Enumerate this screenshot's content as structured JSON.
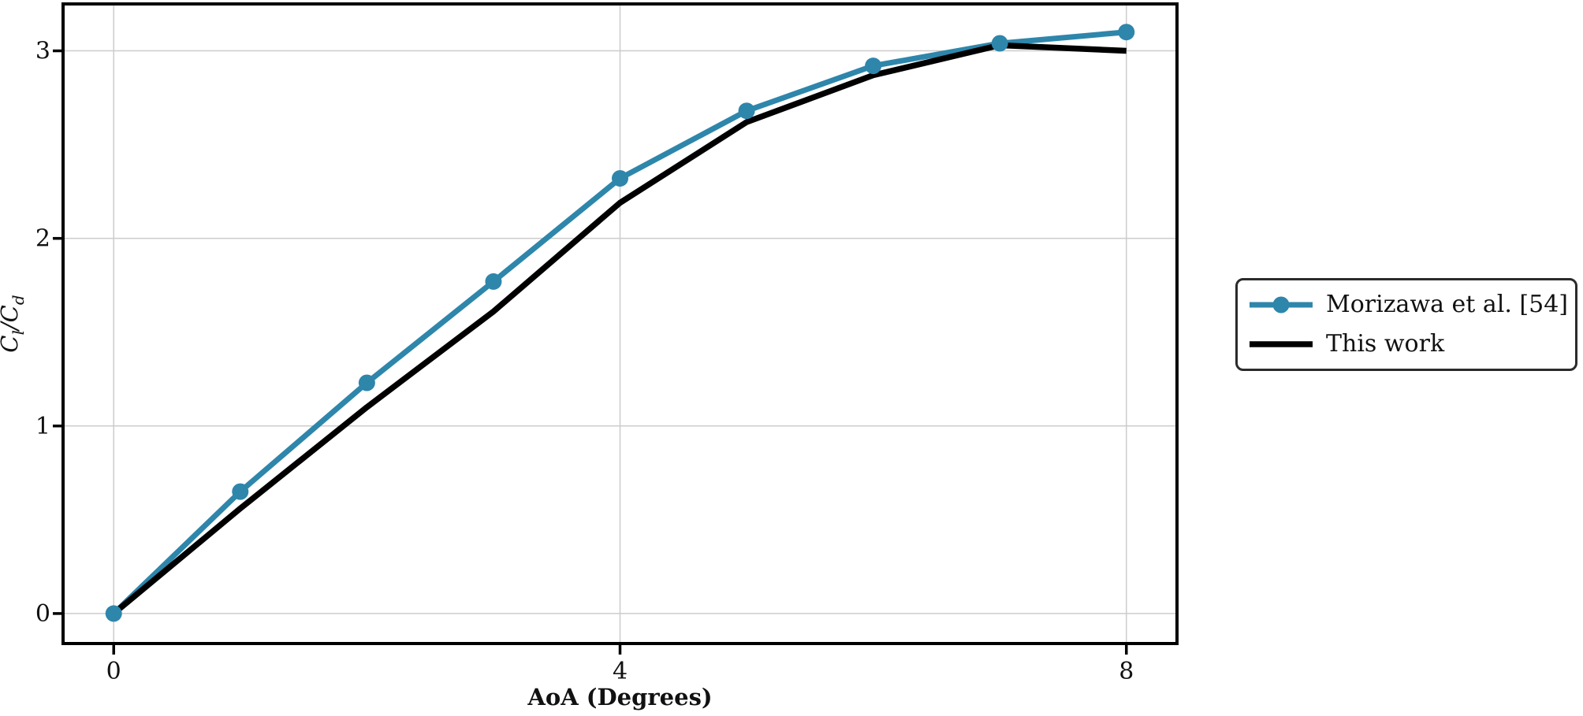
{
  "figure": {
    "background": "#ffffff",
    "text_color": "#111111",
    "spine_color": "#000000"
  },
  "chart_data": {
    "type": "line",
    "title": "",
    "x": [
      0,
      1,
      2,
      3,
      4,
      5,
      6,
      7,
      8
    ],
    "series": [
      {
        "name": "Morizawa et al. [54]",
        "color": "#2e86ab",
        "marker": "circle",
        "marker_size": 10.5,
        "line_width": 7,
        "values": [
          0.0,
          0.65,
          1.23,
          1.77,
          2.32,
          2.68,
          2.92,
          3.04,
          3.1
        ]
      },
      {
        "name": "This work",
        "color": "#000000",
        "marker": "none",
        "marker_size": 0,
        "line_width": 7.5,
        "values": [
          0.0,
          0.56,
          1.1,
          1.61,
          2.19,
          2.62,
          2.87,
          3.03,
          3.0
        ]
      }
    ],
    "xlabel": "AoA (Degrees)",
    "ylabel": "Cl/Cd",
    "ylabel_parts": [
      {
        "base": "C",
        "sub": "l"
      },
      {
        "base": "C",
        "sub": "d"
      }
    ],
    "ylabel_separator": "/",
    "xticks": [
      0,
      4,
      8
    ],
    "yticks": [
      0,
      1,
      2,
      3
    ],
    "xlim": [
      -0.4,
      8.4
    ],
    "ylim": [
      -0.16,
      3.25
    ],
    "grid": true,
    "grid_color": "#cccccc",
    "legend": {
      "position": "outside-right",
      "border_color": "#2b2b2b"
    }
  }
}
